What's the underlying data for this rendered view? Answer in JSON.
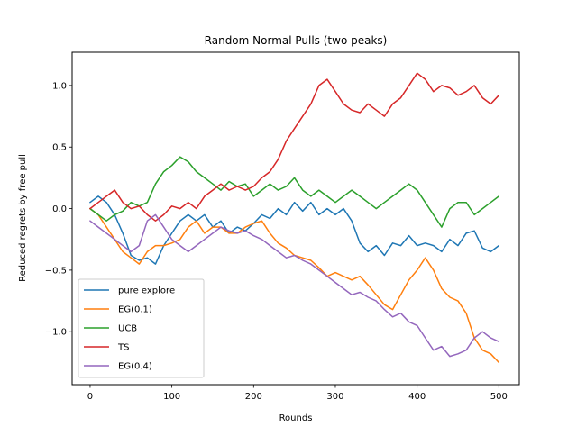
{
  "chart_data": {
    "type": "line",
    "title": "Random Normal Pulls (two peaks)",
    "xlabel": "Rounds",
    "ylabel": "Reduced regrets by free pull",
    "xlim": [
      -22,
      525
    ],
    "ylim": [
      -1.43,
      1.27
    ],
    "xticks": [
      0,
      100,
      200,
      300,
      400,
      500
    ],
    "yticks": [
      -1.0,
      -0.5,
      0.0,
      0.5,
      1.0
    ],
    "xtick_labels": [
      "0",
      "100",
      "200",
      "300",
      "400",
      "500"
    ],
    "ytick_labels": [
      "−1.0",
      "−0.5",
      "0.0",
      "0.5",
      "1.0"
    ],
    "grid": false,
    "legend_position": "lower-left",
    "series": [
      {
        "name": "pure explore",
        "color": "#1f77b4",
        "points": [
          [
            0,
            0.05
          ],
          [
            10,
            0.1
          ],
          [
            20,
            0.05
          ],
          [
            30,
            -0.05
          ],
          [
            40,
            -0.2
          ],
          [
            50,
            -0.38
          ],
          [
            60,
            -0.42
          ],
          [
            70,
            -0.4
          ],
          [
            80,
            -0.45
          ],
          [
            90,
            -0.3
          ],
          [
            100,
            -0.2
          ],
          [
            110,
            -0.1
          ],
          [
            120,
            -0.05
          ],
          [
            130,
            -0.1
          ],
          [
            140,
            -0.05
          ],
          [
            150,
            -0.15
          ],
          [
            160,
            -0.1
          ],
          [
            170,
            -0.2
          ],
          [
            180,
            -0.15
          ],
          [
            190,
            -0.18
          ],
          [
            200,
            -0.12
          ],
          [
            210,
            -0.05
          ],
          [
            220,
            -0.08
          ],
          [
            230,
            0.0
          ],
          [
            240,
            -0.05
          ],
          [
            250,
            0.05
          ],
          [
            260,
            -0.02
          ],
          [
            270,
            0.05
          ],
          [
            280,
            -0.05
          ],
          [
            290,
            0.0
          ],
          [
            300,
            -0.05
          ],
          [
            310,
            0.0
          ],
          [
            320,
            -0.1
          ],
          [
            330,
            -0.28
          ],
          [
            340,
            -0.35
          ],
          [
            350,
            -0.3
          ],
          [
            360,
            -0.38
          ],
          [
            370,
            -0.28
          ],
          [
            380,
            -0.3
          ],
          [
            390,
            -0.22
          ],
          [
            400,
            -0.3
          ],
          [
            410,
            -0.28
          ],
          [
            420,
            -0.3
          ],
          [
            430,
            -0.35
          ],
          [
            440,
            -0.25
          ],
          [
            450,
            -0.3
          ],
          [
            460,
            -0.2
          ],
          [
            470,
            -0.18
          ],
          [
            480,
            -0.32
          ],
          [
            490,
            -0.35
          ],
          [
            500,
            -0.3
          ]
        ]
      },
      {
        "name": "EG(0.1)",
        "color": "#ff7f0e",
        "points": [
          [
            0,
            0.0
          ],
          [
            10,
            -0.05
          ],
          [
            20,
            -0.15
          ],
          [
            30,
            -0.25
          ],
          [
            40,
            -0.35
          ],
          [
            50,
            -0.4
          ],
          [
            60,
            -0.45
          ],
          [
            70,
            -0.35
          ],
          [
            80,
            -0.3
          ],
          [
            90,
            -0.3
          ],
          [
            100,
            -0.28
          ],
          [
            110,
            -0.25
          ],
          [
            120,
            -0.15
          ],
          [
            130,
            -0.1
          ],
          [
            140,
            -0.2
          ],
          [
            150,
            -0.15
          ],
          [
            160,
            -0.15
          ],
          [
            170,
            -0.2
          ],
          [
            180,
            -0.2
          ],
          [
            190,
            -0.15
          ],
          [
            200,
            -0.12
          ],
          [
            210,
            -0.1
          ],
          [
            220,
            -0.2
          ],
          [
            230,
            -0.28
          ],
          [
            240,
            -0.32
          ],
          [
            250,
            -0.38
          ],
          [
            260,
            -0.4
          ],
          [
            270,
            -0.42
          ],
          [
            280,
            -0.48
          ],
          [
            290,
            -0.55
          ],
          [
            300,
            -0.52
          ],
          [
            310,
            -0.55
          ],
          [
            320,
            -0.58
          ],
          [
            330,
            -0.55
          ],
          [
            340,
            -0.62
          ],
          [
            350,
            -0.7
          ],
          [
            360,
            -0.78
          ],
          [
            370,
            -0.82
          ],
          [
            380,
            -0.7
          ],
          [
            390,
            -0.58
          ],
          [
            400,
            -0.5
          ],
          [
            410,
            -0.4
          ],
          [
            420,
            -0.5
          ],
          [
            430,
            -0.65
          ],
          [
            440,
            -0.72
          ],
          [
            450,
            -0.75
          ],
          [
            460,
            -0.85
          ],
          [
            470,
            -1.05
          ],
          [
            480,
            -1.15
          ],
          [
            490,
            -1.18
          ],
          [
            500,
            -1.25
          ]
        ]
      },
      {
        "name": "UCB",
        "color": "#2ca02c",
        "points": [
          [
            0,
            0.0
          ],
          [
            10,
            -0.05
          ],
          [
            20,
            -0.1
          ],
          [
            30,
            -0.05
          ],
          [
            40,
            -0.02
          ],
          [
            50,
            0.05
          ],
          [
            60,
            0.02
          ],
          [
            70,
            0.05
          ],
          [
            80,
            0.2
          ],
          [
            90,
            0.3
          ],
          [
            100,
            0.35
          ],
          [
            110,
            0.42
          ],
          [
            120,
            0.38
          ],
          [
            130,
            0.3
          ],
          [
            140,
            0.25
          ],
          [
            150,
            0.2
          ],
          [
            160,
            0.15
          ],
          [
            170,
            0.22
          ],
          [
            180,
            0.18
          ],
          [
            190,
            0.2
          ],
          [
            200,
            0.1
          ],
          [
            210,
            0.15
          ],
          [
            220,
            0.2
          ],
          [
            230,
            0.15
          ],
          [
            240,
            0.18
          ],
          [
            250,
            0.25
          ],
          [
            260,
            0.15
          ],
          [
            270,
            0.1
          ],
          [
            280,
            0.15
          ],
          [
            290,
            0.1
          ],
          [
            300,
            0.05
          ],
          [
            310,
            0.1
          ],
          [
            320,
            0.15
          ],
          [
            330,
            0.1
          ],
          [
            340,
            0.05
          ],
          [
            350,
            0.0
          ],
          [
            360,
            0.05
          ],
          [
            370,
            0.1
          ],
          [
            380,
            0.15
          ],
          [
            390,
            0.2
          ],
          [
            400,
            0.15
          ],
          [
            410,
            0.05
          ],
          [
            420,
            -0.05
          ],
          [
            430,
            -0.15
          ],
          [
            440,
            0.0
          ],
          [
            450,
            0.05
          ],
          [
            460,
            0.05
          ],
          [
            470,
            -0.05
          ],
          [
            480,
            0.0
          ],
          [
            490,
            0.05
          ],
          [
            500,
            0.1
          ]
        ]
      },
      {
        "name": "TS",
        "color": "#d62728",
        "points": [
          [
            0,
            0.0
          ],
          [
            10,
            0.05
          ],
          [
            20,
            0.1
          ],
          [
            30,
            0.15
          ],
          [
            40,
            0.05
          ],
          [
            50,
            0.0
          ],
          [
            60,
            0.02
          ],
          [
            70,
            -0.05
          ],
          [
            80,
            -0.1
          ],
          [
            90,
            -0.05
          ],
          [
            100,
            0.02
          ],
          [
            110,
            0.0
          ],
          [
            120,
            0.05
          ],
          [
            130,
            0.0
          ],
          [
            140,
            0.1
          ],
          [
            150,
            0.15
          ],
          [
            160,
            0.2
          ],
          [
            170,
            0.15
          ],
          [
            180,
            0.18
          ],
          [
            190,
            0.15
          ],
          [
            200,
            0.18
          ],
          [
            210,
            0.25
          ],
          [
            220,
            0.3
          ],
          [
            230,
            0.4
          ],
          [
            240,
            0.55
          ],
          [
            250,
            0.65
          ],
          [
            260,
            0.75
          ],
          [
            270,
            0.85
          ],
          [
            280,
            1.0
          ],
          [
            290,
            1.05
          ],
          [
            300,
            0.95
          ],
          [
            310,
            0.85
          ],
          [
            320,
            0.8
          ],
          [
            330,
            0.78
          ],
          [
            340,
            0.85
          ],
          [
            350,
            0.8
          ],
          [
            360,
            0.75
          ],
          [
            370,
            0.85
          ],
          [
            380,
            0.9
          ],
          [
            390,
            1.0
          ],
          [
            400,
            1.1
          ],
          [
            410,
            1.05
          ],
          [
            420,
            0.95
          ],
          [
            430,
            1.0
          ],
          [
            440,
            0.98
          ],
          [
            450,
            0.92
          ],
          [
            460,
            0.95
          ],
          [
            470,
            1.0
          ],
          [
            480,
            0.9
          ],
          [
            490,
            0.85
          ],
          [
            500,
            0.92
          ]
        ]
      },
      {
        "name": "EG(0.4)",
        "color": "#9467bd",
        "points": [
          [
            0,
            -0.1
          ],
          [
            10,
            -0.15
          ],
          [
            20,
            -0.2
          ],
          [
            30,
            -0.25
          ],
          [
            40,
            -0.3
          ],
          [
            50,
            -0.35
          ],
          [
            60,
            -0.3
          ],
          [
            70,
            -0.1
          ],
          [
            80,
            -0.05
          ],
          [
            90,
            -0.15
          ],
          [
            100,
            -0.25
          ],
          [
            110,
            -0.3
          ],
          [
            120,
            -0.35
          ],
          [
            130,
            -0.3
          ],
          [
            140,
            -0.25
          ],
          [
            150,
            -0.2
          ],
          [
            160,
            -0.15
          ],
          [
            170,
            -0.18
          ],
          [
            180,
            -0.2
          ],
          [
            190,
            -0.18
          ],
          [
            200,
            -0.22
          ],
          [
            210,
            -0.25
          ],
          [
            220,
            -0.3
          ],
          [
            230,
            -0.35
          ],
          [
            240,
            -0.4
          ],
          [
            250,
            -0.38
          ],
          [
            260,
            -0.42
          ],
          [
            270,
            -0.45
          ],
          [
            280,
            -0.5
          ],
          [
            290,
            -0.55
          ],
          [
            300,
            -0.6
          ],
          [
            310,
            -0.65
          ],
          [
            320,
            -0.7
          ],
          [
            330,
            -0.68
          ],
          [
            340,
            -0.72
          ],
          [
            350,
            -0.75
          ],
          [
            360,
            -0.82
          ],
          [
            370,
            -0.88
          ],
          [
            380,
            -0.85
          ],
          [
            390,
            -0.92
          ],
          [
            400,
            -0.95
          ],
          [
            410,
            -1.05
          ],
          [
            420,
            -1.15
          ],
          [
            430,
            -1.12
          ],
          [
            440,
            -1.2
          ],
          [
            450,
            -1.18
          ],
          [
            460,
            -1.15
          ],
          [
            470,
            -1.05
          ],
          [
            480,
            -1.0
          ],
          [
            490,
            -1.05
          ],
          [
            500,
            -1.08
          ]
        ]
      }
    ]
  }
}
